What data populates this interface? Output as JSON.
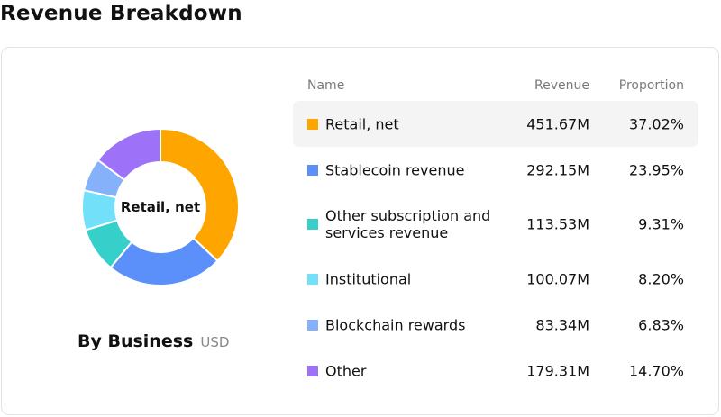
{
  "page": {
    "title": "Revenue Breakdown"
  },
  "panel": {
    "title": "By Business",
    "unit": "USD",
    "center_label": "Retail, net"
  },
  "table": {
    "headers": {
      "name": "Name",
      "revenue": "Revenue",
      "proportion": "Proportion"
    },
    "selected_index": 0,
    "rows": [
      {
        "name": "Retail, net",
        "revenue": "451.67M",
        "proportion": "37.02%",
        "color": "#FFA500"
      },
      {
        "name": "Stablecoin revenue",
        "revenue": "292.15M",
        "proportion": "23.95%",
        "color": "#5B8FF9"
      },
      {
        "name": "Other subscription and services revenue",
        "revenue": "113.53M",
        "proportion": "9.31%",
        "color": "#36CFC9"
      },
      {
        "name": "Institutional",
        "revenue": "100.07M",
        "proportion": "8.20%",
        "color": "#73E0F9"
      },
      {
        "name": "Blockchain rewards",
        "revenue": "83.34M",
        "proportion": "6.83%",
        "color": "#85B1FA"
      },
      {
        "name": "Other",
        "revenue": "179.31M",
        "proportion": "14.70%",
        "color": "#9D72F9"
      }
    ]
  },
  "chart_data": {
    "type": "pie",
    "style": "donut",
    "title": "By Business",
    "unit": "USD",
    "center_label": "Retail, net",
    "categories": [
      "Retail, net",
      "Stablecoin revenue",
      "Other subscription and services revenue",
      "Institutional",
      "Blockchain rewards",
      "Other"
    ],
    "values": [
      451.67,
      292.15,
      113.53,
      100.07,
      83.34,
      179.31
    ],
    "proportions": [
      37.02,
      23.95,
      9.31,
      8.2,
      6.83,
      14.7
    ],
    "colors": [
      "#FFA500",
      "#5B8FF9",
      "#36CFC9",
      "#73E0F9",
      "#85B1FA",
      "#9D72F9"
    ],
    "highlighted": "Retail, net",
    "legend": "right"
  }
}
